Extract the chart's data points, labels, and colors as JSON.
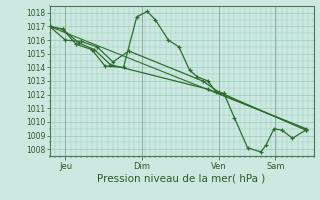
{
  "bg_color": "#cce8e0",
  "grid_color": "#99ccbb",
  "line_color": "#2d6e2d",
  "marker_color": "#2d6e2d",
  "xlabel": "Pression niveau de la mer( hPa )",
  "ylim": [
    1007.5,
    1018.5
  ],
  "yticks": [
    1008,
    1009,
    1010,
    1011,
    1012,
    1013,
    1014,
    1015,
    1016,
    1017,
    1018
  ],
  "xtick_labels": [
    "Jeu",
    "Dim",
    "Ven",
    "Sam"
  ],
  "xtick_positions": [
    0.06,
    0.35,
    0.64,
    0.855
  ],
  "vline_positions": [
    0.06,
    0.35,
    0.64,
    0.855
  ],
  "series": [
    [
      0.0,
      1017.0,
      0.05,
      1016.8,
      0.1,
      1015.7,
      0.16,
      1015.3,
      0.21,
      1014.1,
      0.28,
      1014.0,
      0.33,
      1017.7,
      0.37,
      1018.1,
      0.4,
      1017.5,
      0.45,
      1016.0,
      0.49,
      1015.5,
      0.53,
      1013.8,
      0.56,
      1013.3,
      0.6,
      1013.0,
      0.63,
      1012.2,
      0.66,
      1012.1,
      0.7,
      1010.3,
      0.75,
      1008.1,
      0.8,
      1007.8,
      0.82,
      1008.3,
      0.85,
      1009.5,
      0.88,
      1009.4,
      0.92,
      1008.8,
      0.97,
      1009.4
    ],
    [
      0.0,
      1017.0,
      0.06,
      1016.0,
      0.12,
      1015.9,
      0.18,
      1015.5,
      0.24,
      1014.4,
      0.3,
      1015.2,
      0.58,
      1013.0,
      0.64,
      1012.2,
      0.97,
      1009.4
    ],
    [
      0.0,
      1017.0,
      0.05,
      1016.8,
      0.11,
      1015.8,
      0.17,
      1015.3,
      0.23,
      1014.2,
      0.6,
      1012.4,
      0.97,
      1009.5
    ],
    [
      0.0,
      1017.0,
      0.97,
      1009.5
    ]
  ]
}
